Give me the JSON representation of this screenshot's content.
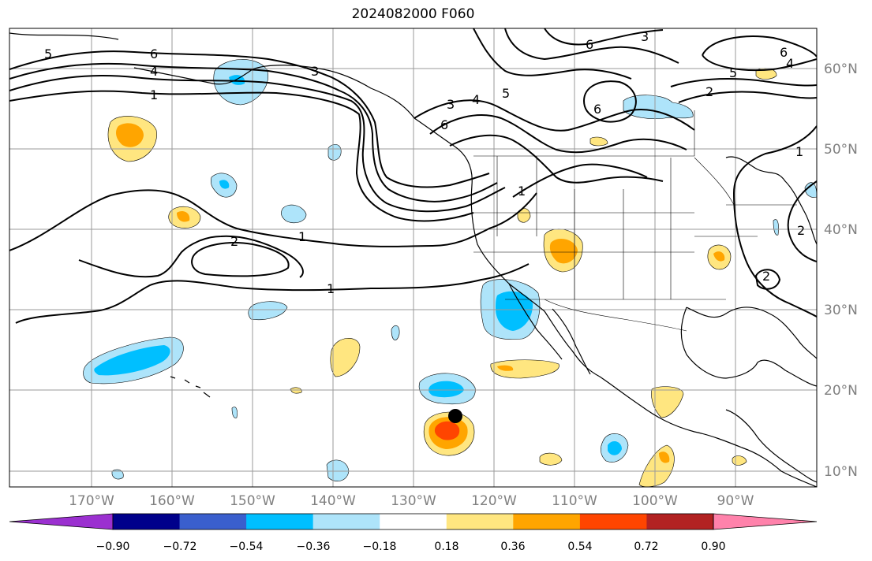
{
  "title": "2024082000 F060",
  "map": {
    "lon_range": [
      -180,
      -80
    ],
    "lat_range": [
      8,
      65
    ],
    "lat_labels": [
      "60°N",
      "50°N",
      "40°N",
      "30°N",
      "20°N",
      "10°N"
    ],
    "lon_labels": [
      "170°W",
      "160°W",
      "150°W",
      "140°W",
      "130°W",
      "120°W",
      "110°W",
      "100°W",
      "90°W"
    ],
    "contour_labels": [
      "5",
      "6",
      "4",
      "1",
      "3",
      "3",
      "4",
      "5",
      "6",
      "1",
      "2",
      "1",
      "1",
      "6",
      "3",
      "6",
      "5",
      "2",
      "4",
      "6",
      "1",
      "2",
      "2"
    ],
    "storm_marker": {
      "lon": -124.8,
      "lat": 16.7
    }
  },
  "colorbar": {
    "ticks": [
      "−0.90",
      "−0.72",
      "−0.54",
      "−0.36",
      "−0.18",
      "0.18",
      "0.36",
      "0.54",
      "0.72",
      "0.90"
    ],
    "colors": [
      "#9b30d0",
      "#00008b",
      "#3a5fcd",
      "#00bfff",
      "#aee4fa",
      "#ffffff",
      "#ffe680",
      "#ffa500",
      "#ff4500",
      "#b22222",
      "#ff82ab"
    ]
  }
}
